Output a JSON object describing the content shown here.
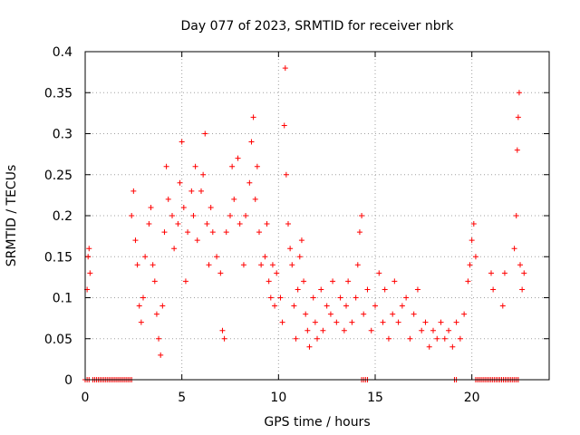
{
  "chart_data": {
    "type": "scatter",
    "title": "Day 077 of 2023, SRMTID for receiver nbrk",
    "xlabel": "GPS time / hours",
    "ylabel": "SRMTID / TECUs",
    "xlim": [
      0,
      24
    ],
    "ylim": [
      0,
      0.4
    ],
    "x_ticks": [
      0,
      5,
      10,
      15,
      20
    ],
    "x_tick_labels": [
      "0",
      "5",
      "10",
      "15",
      "20"
    ],
    "y_ticks": [
      0,
      0.05,
      0.1,
      0.15,
      0.2,
      0.25,
      0.3,
      0.35,
      0.4
    ],
    "y_tick_labels": [
      "0",
      "0.05",
      "0.1",
      "0.15",
      "0.2",
      "0.25",
      "0.3",
      "0.35",
      "0.4"
    ],
    "grid": true,
    "marker": "+",
    "marker_color": "#ff0000",
    "series": [
      {
        "name": "SRMTID",
        "points": [
          [
            0.1,
            0.11
          ],
          [
            0.15,
            0.15
          ],
          [
            0.2,
            0.16
          ],
          [
            0.25,
            0.13
          ],
          [
            2.4,
            0.2
          ],
          [
            2.5,
            0.23
          ],
          [
            2.6,
            0.17
          ],
          [
            2.7,
            0.14
          ],
          [
            2.8,
            0.09
          ],
          [
            2.9,
            0.07
          ],
          [
            3.0,
            0.1
          ],
          [
            3.1,
            0.15
          ],
          [
            3.3,
            0.19
          ],
          [
            3.4,
            0.21
          ],
          [
            3.5,
            0.14
          ],
          [
            3.6,
            0.12
          ],
          [
            3.7,
            0.08
          ],
          [
            3.8,
            0.05
          ],
          [
            3.9,
            0.03
          ],
          [
            4.0,
            0.09
          ],
          [
            4.1,
            0.18
          ],
          [
            4.2,
            0.26
          ],
          [
            4.3,
            0.22
          ],
          [
            4.5,
            0.2
          ],
          [
            4.6,
            0.16
          ],
          [
            4.8,
            0.19
          ],
          [
            4.9,
            0.24
          ],
          [
            5.0,
            0.29
          ],
          [
            5.1,
            0.21
          ],
          [
            5.2,
            0.12
          ],
          [
            5.3,
            0.18
          ],
          [
            5.5,
            0.23
          ],
          [
            5.6,
            0.2
          ],
          [
            5.7,
            0.26
          ],
          [
            5.8,
            0.17
          ],
          [
            6.0,
            0.23
          ],
          [
            6.1,
            0.25
          ],
          [
            6.2,
            0.3
          ],
          [
            6.3,
            0.19
          ],
          [
            6.4,
            0.14
          ],
          [
            6.5,
            0.21
          ],
          [
            6.6,
            0.18
          ],
          [
            6.8,
            0.15
          ],
          [
            7.0,
            0.13
          ],
          [
            7.1,
            0.06
          ],
          [
            7.2,
            0.05
          ],
          [
            7.3,
            0.18
          ],
          [
            7.5,
            0.2
          ],
          [
            7.6,
            0.26
          ],
          [
            7.7,
            0.22
          ],
          [
            7.9,
            0.27
          ],
          [
            8.0,
            0.19
          ],
          [
            8.2,
            0.14
          ],
          [
            8.3,
            0.2
          ],
          [
            8.5,
            0.24
          ],
          [
            8.6,
            0.29
          ],
          [
            8.7,
            0.32
          ],
          [
            8.8,
            0.22
          ],
          [
            8.9,
            0.26
          ],
          [
            9.0,
            0.18
          ],
          [
            9.1,
            0.14
          ],
          [
            9.3,
            0.15
          ],
          [
            9.4,
            0.19
          ],
          [
            9.5,
            0.12
          ],
          [
            9.6,
            0.1
          ],
          [
            9.7,
            0.14
          ],
          [
            9.8,
            0.09
          ],
          [
            9.9,
            0.13
          ],
          [
            10.1,
            0.1
          ],
          [
            10.2,
            0.07
          ],
          [
            10.3,
            0.31
          ],
          [
            10.35,
            0.38
          ],
          [
            10.4,
            0.25
          ],
          [
            10.5,
            0.19
          ],
          [
            10.6,
            0.16
          ],
          [
            10.7,
            0.14
          ],
          [
            10.8,
            0.09
          ],
          [
            10.9,
            0.05
          ],
          [
            11.0,
            0.11
          ],
          [
            11.1,
            0.15
          ],
          [
            11.2,
            0.17
          ],
          [
            11.3,
            0.12
          ],
          [
            11.4,
            0.08
          ],
          [
            11.5,
            0.06
          ],
          [
            11.6,
            0.04
          ],
          [
            11.8,
            0.1
          ],
          [
            11.9,
            0.07
          ],
          [
            12.0,
            0.05
          ],
          [
            12.2,
            0.11
          ],
          [
            12.3,
            0.06
          ],
          [
            12.5,
            0.09
          ],
          [
            12.7,
            0.08
          ],
          [
            12.8,
            0.12
          ],
          [
            13.0,
            0.07
          ],
          [
            13.2,
            0.1
          ],
          [
            13.4,
            0.06
          ],
          [
            13.5,
            0.09
          ],
          [
            13.6,
            0.12
          ],
          [
            13.8,
            0.07
          ],
          [
            14.0,
            0.1
          ],
          [
            14.1,
            0.14
          ],
          [
            14.2,
            0.18
          ],
          [
            14.3,
            0.2
          ],
          [
            14.4,
            0.08
          ],
          [
            14.6,
            0.11
          ],
          [
            14.8,
            0.06
          ],
          [
            15.0,
            0.09
          ],
          [
            15.2,
            0.13
          ],
          [
            15.4,
            0.07
          ],
          [
            15.5,
            0.11
          ],
          [
            15.7,
            0.05
          ],
          [
            15.9,
            0.08
          ],
          [
            16.0,
            0.12
          ],
          [
            16.2,
            0.07
          ],
          [
            16.4,
            0.09
          ],
          [
            16.6,
            0.1
          ],
          [
            16.8,
            0.05
          ],
          [
            17.0,
            0.08
          ],
          [
            17.2,
            0.11
          ],
          [
            17.4,
            0.06
          ],
          [
            17.6,
            0.07
          ],
          [
            17.8,
            0.04
          ],
          [
            18.0,
            0.06
          ],
          [
            18.2,
            0.05
          ],
          [
            18.4,
            0.07
          ],
          [
            18.6,
            0.05
          ],
          [
            18.8,
            0.06
          ],
          [
            19.0,
            0.04
          ],
          [
            19.2,
            0.07
          ],
          [
            19.4,
            0.05
          ],
          [
            19.6,
            0.08
          ],
          [
            19.8,
            0.12
          ],
          [
            19.9,
            0.14
          ],
          [
            20.0,
            0.17
          ],
          [
            20.1,
            0.19
          ],
          [
            20.2,
            0.15
          ],
          [
            21.0,
            0.13
          ],
          [
            21.1,
            0.11
          ],
          [
            21.6,
            0.09
          ],
          [
            21.7,
            0.13
          ],
          [
            22.2,
            0.16
          ],
          [
            22.3,
            0.2
          ],
          [
            22.35,
            0.28
          ],
          [
            22.4,
            0.32
          ],
          [
            22.45,
            0.35
          ],
          [
            22.5,
            0.14
          ],
          [
            22.6,
            0.11
          ],
          [
            22.7,
            0.13
          ]
        ]
      }
    ],
    "zero_segments": [
      [
        0,
        0.2
      ],
      [
        0.4,
        2.4
      ],
      [
        14.3,
        14.6
      ],
      [
        19.1,
        19.2
      ],
      [
        20.2,
        22.4
      ]
    ]
  }
}
